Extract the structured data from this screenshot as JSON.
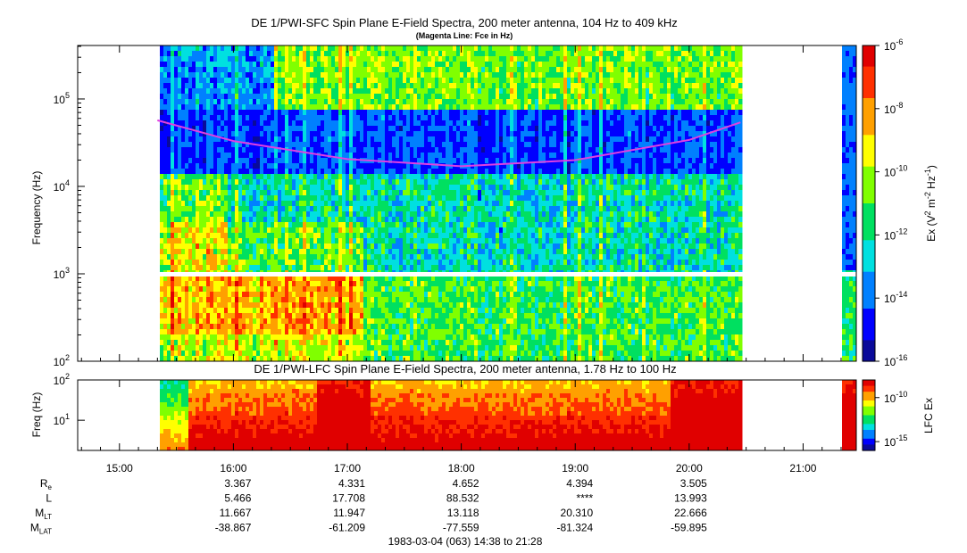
{
  "figure": {
    "date_line": "1983-03-04 (063) 14:38 to 21:28"
  },
  "colors": {
    "fce_line": "#e040e0",
    "colormap": [
      "#0a0a9a",
      "#0000ff",
      "#0080ff",
      "#00e0e0",
      "#00e060",
      "#80ff00",
      "#ffff00",
      "#ffa000",
      "#ff3000",
      "#e00000"
    ]
  },
  "chart_data": [
    {
      "type": "heatmap",
      "title": "DE 1/PWI-SFC  Spin Plane E-Field Spectra, 200 meter antenna, 104 Hz to 409 kHz",
      "subtitle": "(Magenta Line: Fce in Hz)",
      "ylabel": "Frequency (Hz)",
      "y_scale": "log",
      "ylim": [
        100,
        409000
      ],
      "y_ticks": [
        {
          "value": 100,
          "base": "10",
          "exp": "2"
        },
        {
          "value": 1000,
          "base": "10",
          "exp": "3"
        },
        {
          "value": 10000,
          "base": "10",
          "exp": "4"
        },
        {
          "value": 100000,
          "base": "10",
          "exp": "5"
        }
      ],
      "x_range": [
        "14:38",
        "21:28"
      ],
      "data_coverage": [
        [
          "15:20",
          "20:27"
        ],
        [
          "21:20",
          "21:28"
        ]
      ],
      "colorbar": {
        "label_parts": [
          "Ex (V",
          "2",
          " m",
          "-2",
          " Hz",
          "-1",
          ")"
        ],
        "scale": "log",
        "range": [
          1e-16,
          1e-06
        ],
        "ticks": [
          {
            "base": "10",
            "exp": "-6"
          },
          {
            "base": "10",
            "exp": "-8"
          },
          {
            "base": "10",
            "exp": "-10"
          },
          {
            "base": "10",
            "exp": "-12"
          },
          {
            "base": "10",
            "exp": "-14"
          },
          {
            "base": "10",
            "exp": "-16"
          }
        ]
      },
      "fce_line": {
        "name": "Fce",
        "points": [
          [
            "15:20",
            57000
          ],
          [
            "16:00",
            33000
          ],
          [
            "17:00",
            20500
          ],
          [
            "18:00",
            17000
          ],
          [
            "19:00",
            20000
          ],
          [
            "20:00",
            34000
          ],
          [
            "20:27",
            54000
          ]
        ]
      }
    },
    {
      "type": "heatmap",
      "title": "DE 1/PWI-LFC  Spin Plane E-Field Spectra, 200 meter antenna, 1.78 Hz to 100 Hz",
      "ylabel": "Freq (Hz)",
      "y_scale": "log",
      "ylim": [
        1.78,
        100
      ],
      "y_ticks": [
        {
          "value": 10,
          "base": "10",
          "exp": "1"
        },
        {
          "value": 100,
          "base": "10",
          "exp": "2"
        }
      ],
      "colorbar": {
        "label": "LFC Ex",
        "scale": "log",
        "range": [
          1e-16,
          1e-08
        ],
        "ticks": [
          {
            "base": "10",
            "exp": "-10"
          },
          {
            "base": "10",
            "exp": "-15"
          }
        ]
      }
    }
  ],
  "time_axis": {
    "ticks": [
      "15:00",
      "16:00",
      "17:00",
      "18:00",
      "19:00",
      "20:00",
      "21:00"
    ]
  },
  "ephemeris": {
    "rows": [
      {
        "base": "R",
        "sub": "e",
        "values": [
          "3.367",
          "4.331",
          "4.652",
          "4.394",
          "3.505"
        ]
      },
      {
        "base": "L",
        "sub": "",
        "values": [
          "5.466",
          "17.708",
          "88.532",
          "****",
          "13.993"
        ]
      },
      {
        "base": "M",
        "sub": "LT",
        "values": [
          "11.667",
          "11.947",
          "13.118",
          "20.310",
          "22.666"
        ]
      },
      {
        "base": "M",
        "sub": "LAT",
        "values": [
          "-38.867",
          "-61.209",
          "-77.559",
          "-81.324",
          "-59.895"
        ]
      }
    ]
  }
}
